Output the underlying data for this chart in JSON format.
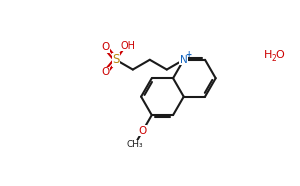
{
  "bg_color": "#ffffff",
  "bond_color": "#1a1a1a",
  "N_color": "#1565C0",
  "S_color": "#b8860b",
  "O_color": "#cc0000",
  "H2O_color": "#cc0000",
  "figsize": [
    3.0,
    1.86
  ],
  "dpi": 100,
  "linewidth": 1.5,
  "font_size_atom": 7.5,
  "font_size_sub": 5.5,
  "font_size_h2o": 8.0,
  "xlim": [
    0.0,
    10.0
  ],
  "ylim": [
    0.5,
    6.5
  ]
}
